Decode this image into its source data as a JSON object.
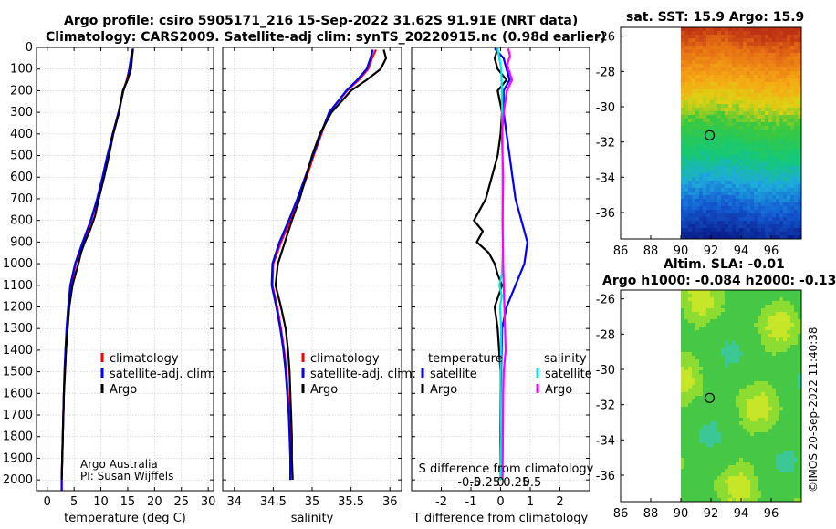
{
  "header": {
    "line1": "Argo profile: csiro 5905171_216 15-Sep-2022 31.62S 91.91E (NRT data)",
    "line2": "Climatology: CARS2009. Satellite-adj clim: synTS_20220915.nc (0.98d earlier)"
  },
  "credits": {
    "line1": "Argo Australia",
    "line2": "PI: Susan Wijffels"
  },
  "timestamp": "©IMOS 20-Sep-2022 11:40:38",
  "colors": {
    "climatology": "#ff0000",
    "satellite": "#0000ff",
    "argo": "#000000",
    "sat_salinity": "#00e5ee",
    "argo_salinity": "#ff00ff"
  },
  "chart_data": [
    {
      "id": "temperature",
      "type": "line",
      "xlabel": "temperature (deg C)",
      "xlim": [
        -2,
        31
      ],
      "ylim": [
        2050,
        0
      ],
      "xticks": [
        0,
        5,
        10,
        15,
        20,
        25,
        30
      ],
      "yticks": [
        0,
        100,
        200,
        300,
        400,
        500,
        600,
        700,
        800,
        900,
        1000,
        1100,
        1200,
        1300,
        1400,
        1500,
        1600,
        1700,
        1800,
        1900,
        2000
      ],
      "legend": [
        "climatology",
        "satellite-adj. clim.",
        "Argo"
      ],
      "series": [
        {
          "name": "climatology",
          "color": "#ff0000",
          "points": [
            [
              15.9,
              10
            ],
            [
              15.6,
              50
            ],
            [
              15.3,
              100
            ],
            [
              14.8,
              150
            ],
            [
              14.2,
              200
            ],
            [
              13.3,
              300
            ],
            [
              12.2,
              400
            ],
            [
              11.3,
              500
            ],
            [
              10.4,
              600
            ],
            [
              9.4,
              700
            ],
            [
              8.2,
              800
            ],
            [
              6.9,
              900
            ],
            [
              5.3,
              1000
            ],
            [
              4.5,
              1100
            ],
            [
              4.0,
              1200
            ],
            [
              3.7,
              1300
            ],
            [
              3.5,
              1400
            ],
            [
              3.3,
              1500
            ],
            [
              3.1,
              1600
            ],
            [
              3.0,
              1700
            ],
            [
              2.9,
              1800
            ],
            [
              2.8,
              1900
            ],
            [
              2.7,
              2000
            ],
            [
              2.7,
              2050
            ]
          ]
        },
        {
          "name": "satellite-adj. clim.",
          "color": "#0000ff",
          "points": [
            [
              15.8,
              10
            ],
            [
              15.6,
              50
            ],
            [
              15.3,
              100
            ],
            [
              14.9,
              150
            ],
            [
              14.2,
              200
            ],
            [
              13.3,
              300
            ],
            [
              12.2,
              400
            ],
            [
              11.2,
              500
            ],
            [
              10.3,
              600
            ],
            [
              9.3,
              700
            ],
            [
              8.1,
              800
            ],
            [
              6.6,
              900
            ],
            [
              5.2,
              1000
            ],
            [
              4.3,
              1100
            ],
            [
              3.9,
              1200
            ],
            [
              3.6,
              1300
            ],
            [
              3.4,
              1400
            ],
            [
              3.2,
              1500
            ],
            [
              3.1,
              1600
            ],
            [
              3.0,
              1700
            ],
            [
              2.9,
              1800
            ],
            [
              2.8,
              1900
            ],
            [
              2.7,
              2000
            ],
            [
              2.7,
              2050
            ]
          ]
        },
        {
          "name": "Argo",
          "color": "#000000",
          "points": [
            [
              16.0,
              5
            ],
            [
              15.8,
              50
            ],
            [
              15.6,
              100
            ],
            [
              15.0,
              150
            ],
            [
              14.1,
              200
            ],
            [
              13.4,
              300
            ],
            [
              12.3,
              400
            ],
            [
              11.5,
              500
            ],
            [
              10.6,
              600
            ],
            [
              9.6,
              700
            ],
            [
              8.9,
              780
            ],
            [
              7.9,
              850
            ],
            [
              7.0,
              900
            ],
            [
              6.3,
              950
            ],
            [
              5.8,
              1000
            ],
            [
              4.7,
              1100
            ],
            [
              4.1,
              1200
            ],
            [
              3.8,
              1300
            ],
            [
              3.5,
              1400
            ],
            [
              3.3,
              1500
            ],
            [
              3.1,
              1600
            ],
            [
              3.0,
              1700
            ],
            [
              2.9,
              1800
            ],
            [
              2.8,
              1900
            ],
            [
              2.7,
              2000
            ]
          ]
        }
      ]
    },
    {
      "id": "salinity",
      "type": "line",
      "xlabel": "salinity",
      "xlim": [
        33.85,
        36.15
      ],
      "ylim": [
        2050,
        0
      ],
      "xticks": [
        34,
        34.5,
        35,
        35.5,
        36
      ],
      "legend": [
        "climatology",
        "satellite-adj. clim.",
        "Argo"
      ],
      "series": [
        {
          "name": "climatology",
          "color": "#ff0000",
          "points": [
            [
              35.82,
              10
            ],
            [
              35.77,
              50
            ],
            [
              35.72,
              100
            ],
            [
              35.6,
              150
            ],
            [
              35.45,
              200
            ],
            [
              35.22,
              300
            ],
            [
              35.12,
              400
            ],
            [
              35.02,
              500
            ],
            [
              34.93,
              600
            ],
            [
              34.83,
              700
            ],
            [
              34.72,
              800
            ],
            [
              34.6,
              900
            ],
            [
              34.5,
              1000
            ],
            [
              34.49,
              1100
            ],
            [
              34.55,
              1200
            ],
            [
              34.6,
              1300
            ],
            [
              34.64,
              1400
            ],
            [
              34.67,
              1500
            ],
            [
              34.69,
              1600
            ],
            [
              34.71,
              1700
            ],
            [
              34.72,
              1800
            ],
            [
              34.72,
              1900
            ],
            [
              34.72,
              2000
            ]
          ]
        },
        {
          "name": "satellite-adj. clim.",
          "color": "#0000ff",
          "points": [
            [
              35.78,
              10
            ],
            [
              35.75,
              50
            ],
            [
              35.7,
              100
            ],
            [
              35.58,
              150
            ],
            [
              35.44,
              200
            ],
            [
              35.22,
              300
            ],
            [
              35.11,
              400
            ],
            [
              35.01,
              500
            ],
            [
              34.91,
              600
            ],
            [
              34.81,
              700
            ],
            [
              34.7,
              800
            ],
            [
              34.58,
              900
            ],
            [
              34.49,
              1000
            ],
            [
              34.48,
              1100
            ],
            [
              34.54,
              1200
            ],
            [
              34.59,
              1300
            ],
            [
              34.63,
              1400
            ],
            [
              34.66,
              1500
            ],
            [
              34.68,
              1600
            ],
            [
              34.7,
              1700
            ],
            [
              34.71,
              1800
            ],
            [
              34.72,
              1900
            ],
            [
              34.72,
              2000
            ]
          ]
        },
        {
          "name": "Argo",
          "color": "#000000",
          "points": [
            [
              35.92,
              10
            ],
            [
              35.95,
              50
            ],
            [
              35.88,
              100
            ],
            [
              35.7,
              150
            ],
            [
              35.5,
              200
            ],
            [
              35.25,
              300
            ],
            [
              35.1,
              400
            ],
            [
              35.0,
              500
            ],
            [
              34.92,
              600
            ],
            [
              34.84,
              700
            ],
            [
              34.74,
              800
            ],
            [
              34.65,
              900
            ],
            [
              34.56,
              1000
            ],
            [
              34.53,
              1100
            ],
            [
              34.6,
              1200
            ],
            [
              34.66,
              1300
            ],
            [
              34.69,
              1400
            ],
            [
              34.71,
              1500
            ],
            [
              34.72,
              1600
            ],
            [
              34.73,
              1700
            ],
            [
              34.74,
              1800
            ],
            [
              34.74,
              1900
            ],
            [
              34.75,
              2000
            ]
          ]
        }
      ]
    },
    {
      "id": "difference",
      "type": "line",
      "xlabel": "T difference from climatology",
      "xlabel2": "S difference from climatology",
      "xlim": [
        -3,
        3
      ],
      "ylim": [
        2050,
        0
      ],
      "xticks": [
        -2,
        -1,
        0,
        1,
        2
      ],
      "xticks2": [
        -0.5,
        -0.25,
        0,
        0.25,
        0.5
      ],
      "xticks2_labels": [
        "-0.5",
        "-0.25",
        "0",
        "0.25",
        "0.5"
      ],
      "legend_left_title": "temperature",
      "legend_right_title": "salinity",
      "legend_left": [
        "satellite",
        "Argo"
      ],
      "legend_right": [
        "satellite",
        "Argo"
      ],
      "series": [
        {
          "name": "T satellite",
          "color": "#0000ff",
          "points": [
            [
              -0.2,
              5
            ],
            [
              0.1,
              50
            ],
            [
              0.2,
              100
            ],
            [
              0.3,
              150
            ],
            [
              0.1,
              200
            ],
            [
              0.1,
              300
            ],
            [
              0.2,
              400
            ],
            [
              0.3,
              500
            ],
            [
              0.4,
              600
            ],
            [
              0.5,
              700
            ],
            [
              0.7,
              800
            ],
            [
              0.9,
              900
            ],
            [
              0.8,
              1000
            ],
            [
              0.5,
              1100
            ],
            [
              0.2,
              1200
            ],
            [
              0.05,
              1300
            ],
            [
              0.02,
              1500
            ],
            [
              0,
              2000
            ]
          ]
        },
        {
          "name": "T Argo",
          "color": "#000000",
          "points": [
            [
              -0.1,
              5
            ],
            [
              -0.2,
              50
            ],
            [
              -0.1,
              100
            ],
            [
              0.2,
              150
            ],
            [
              -0.1,
              200
            ],
            [
              0.05,
              300
            ],
            [
              0,
              400
            ],
            [
              -0.1,
              500
            ],
            [
              -0.3,
              600
            ],
            [
              -0.5,
              700
            ],
            [
              -0.9,
              800
            ],
            [
              -0.6,
              850
            ],
            [
              -0.8,
              900
            ],
            [
              -0.4,
              950
            ],
            [
              -0.2,
              1000
            ],
            [
              -0.1,
              1050
            ],
            [
              0.05,
              1100
            ],
            [
              -0.2,
              1200
            ],
            [
              -0.1,
              1300
            ],
            [
              0,
              1500
            ],
            [
              0,
              2000
            ]
          ]
        },
        {
          "name": "S satellite",
          "color": "#00e5ee",
          "points": [
            [
              -0.05,
              5
            ],
            [
              -0.02,
              50
            ],
            [
              0.01,
              100
            ],
            [
              0.02,
              200
            ],
            [
              0.03,
              400
            ],
            [
              0.03,
              700
            ],
            [
              0.04,
              900
            ],
            [
              0.02,
              1050
            ],
            [
              -0.02,
              1100
            ],
            [
              0.02,
              1150
            ],
            [
              -0.01,
              1200
            ],
            [
              0.01,
              1300
            ],
            [
              0,
              1500
            ],
            [
              0.01,
              1800
            ],
            [
              0,
              2000
            ]
          ]
        },
        {
          "name": "S Argo",
          "color": "#ff00ff",
          "points": [
            [
              0.12,
              5
            ],
            [
              0.15,
              40
            ],
            [
              0.1,
              80
            ],
            [
              0.18,
              150
            ],
            [
              0.1,
              200
            ],
            [
              0.05,
              300
            ],
            [
              0.02,
              400
            ],
            [
              0.04,
              600
            ],
            [
              0.03,
              800
            ],
            [
              0.04,
              1000
            ],
            [
              0.05,
              1100
            ],
            [
              0.06,
              1200
            ],
            [
              0.07,
              1300
            ],
            [
              0.08,
              1400
            ],
            [
              0.05,
              1500
            ],
            [
              0.04,
              1600
            ],
            [
              0.03,
              2000
            ]
          ]
        }
      ]
    },
    {
      "id": "sst_map",
      "type": "heatmap",
      "title": "sat. SST: 15.9 Argo: 15.9",
      "xlim": [
        86,
        98
      ],
      "ylim": [
        -37.5,
        -25.5
      ],
      "xticks": [
        86,
        88,
        90,
        92,
        94,
        96
      ],
      "yticks": [
        -26,
        -28,
        -30,
        -32,
        -34,
        -36
      ],
      "data_xmin": 90,
      "marker": [
        91.91,
        -31.62
      ]
    },
    {
      "id": "sla_map",
      "type": "heatmap",
      "title": "Altim. SLA: -0.01",
      "title2": "Argo h1000: -0.084 h2000: -0.13",
      "xlim": [
        86,
        98
      ],
      "ylim": [
        -37.5,
        -25.5
      ],
      "xticks": [
        86,
        88,
        90,
        92,
        94,
        96
      ],
      "yticks": [
        -26,
        -28,
        -30,
        -32,
        -34,
        -36
      ],
      "data_xmin": 90,
      "marker": [
        91.91,
        -31.62
      ]
    }
  ]
}
